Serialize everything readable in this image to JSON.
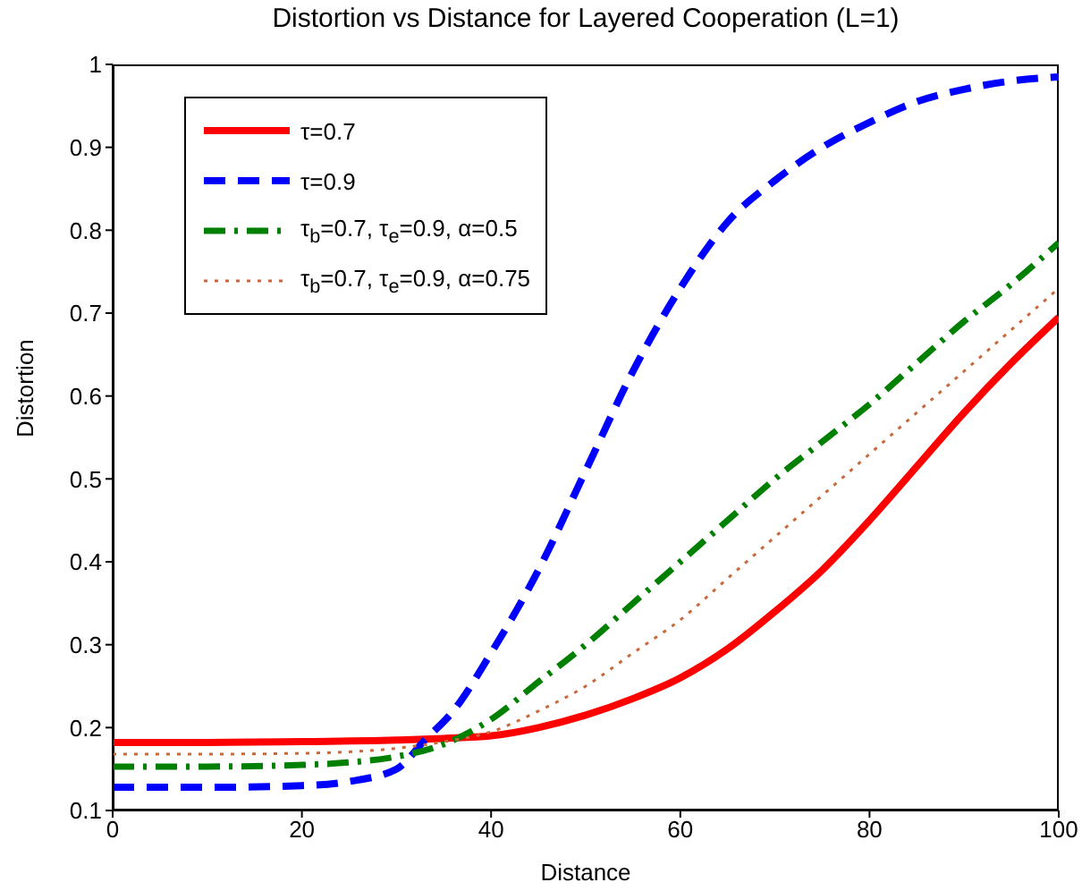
{
  "chart_data": {
    "type": "line",
    "title": "Distortion vs Distance for Layered Cooperation (L=1)",
    "xlabel": "Distance",
    "ylabel": "Distortion",
    "xlim": [
      0,
      100
    ],
    "xticks": [
      0,
      20,
      40,
      60,
      80,
      100
    ],
    "ylim": [
      0.1,
      1
    ],
    "yticks": [
      0.1,
      0.2,
      0.3,
      0.4,
      0.5,
      0.6,
      0.7,
      0.8,
      0.9,
      1
    ],
    "grid": false,
    "legend": "top left",
    "marker": "none",
    "series": [
      {
        "name": "τ=0.7",
        "color": "#ff0000",
        "line_style": "solid",
        "x": [
          0,
          10,
          20,
          30,
          35,
          40,
          45,
          50,
          55,
          60,
          65,
          70,
          75,
          80,
          85,
          90,
          95,
          100
        ],
        "values": [
          0.182,
          0.182,
          0.183,
          0.185,
          0.187,
          0.19,
          0.2,
          0.215,
          0.235,
          0.26,
          0.295,
          0.34,
          0.39,
          0.45,
          0.515,
          0.58,
          0.64,
          0.695
        ]
      },
      {
        "name": "τ=0.9",
        "color": "#0000ff",
        "line_style": "dashed",
        "x": [
          0,
          10,
          20,
          25,
          30,
          33,
          36,
          40,
          45,
          50,
          55,
          60,
          65,
          70,
          75,
          80,
          85,
          90,
          95,
          100
        ],
        "values": [
          0.128,
          0.128,
          0.13,
          0.135,
          0.15,
          0.185,
          0.22,
          0.29,
          0.39,
          0.51,
          0.63,
          0.73,
          0.81,
          0.86,
          0.9,
          0.93,
          0.955,
          0.97,
          0.98,
          0.985
        ]
      },
      {
        "name": "τ$_{b}$=0.7, τ$_{e}$=0.9, α=0.5",
        "color": "#008000",
        "line_style": "dashdot",
        "x": [
          0,
          10,
          20,
          25,
          30,
          35,
          40,
          45,
          50,
          55,
          60,
          65,
          70,
          75,
          80,
          85,
          90,
          95,
          100
        ],
        "values": [
          0.153,
          0.153,
          0.155,
          0.158,
          0.165,
          0.18,
          0.21,
          0.255,
          0.3,
          0.35,
          0.4,
          0.45,
          0.5,
          0.545,
          0.59,
          0.64,
          0.69,
          0.735,
          0.785
        ]
      },
      {
        "name": "τ$_{b}$=0.7, τ$_{e}$=0.9, α=0.75",
        "color": "#c8693c",
        "line_style": "dotted",
        "x": [
          0,
          10,
          20,
          30,
          35,
          40,
          45,
          50,
          55,
          60,
          65,
          70,
          75,
          80,
          85,
          90,
          95,
          100
        ],
        "values": [
          0.168,
          0.168,
          0.169,
          0.175,
          0.183,
          0.195,
          0.22,
          0.25,
          0.29,
          0.33,
          0.38,
          0.43,
          0.48,
          0.53,
          0.58,
          0.63,
          0.68,
          0.73
        ]
      }
    ]
  }
}
